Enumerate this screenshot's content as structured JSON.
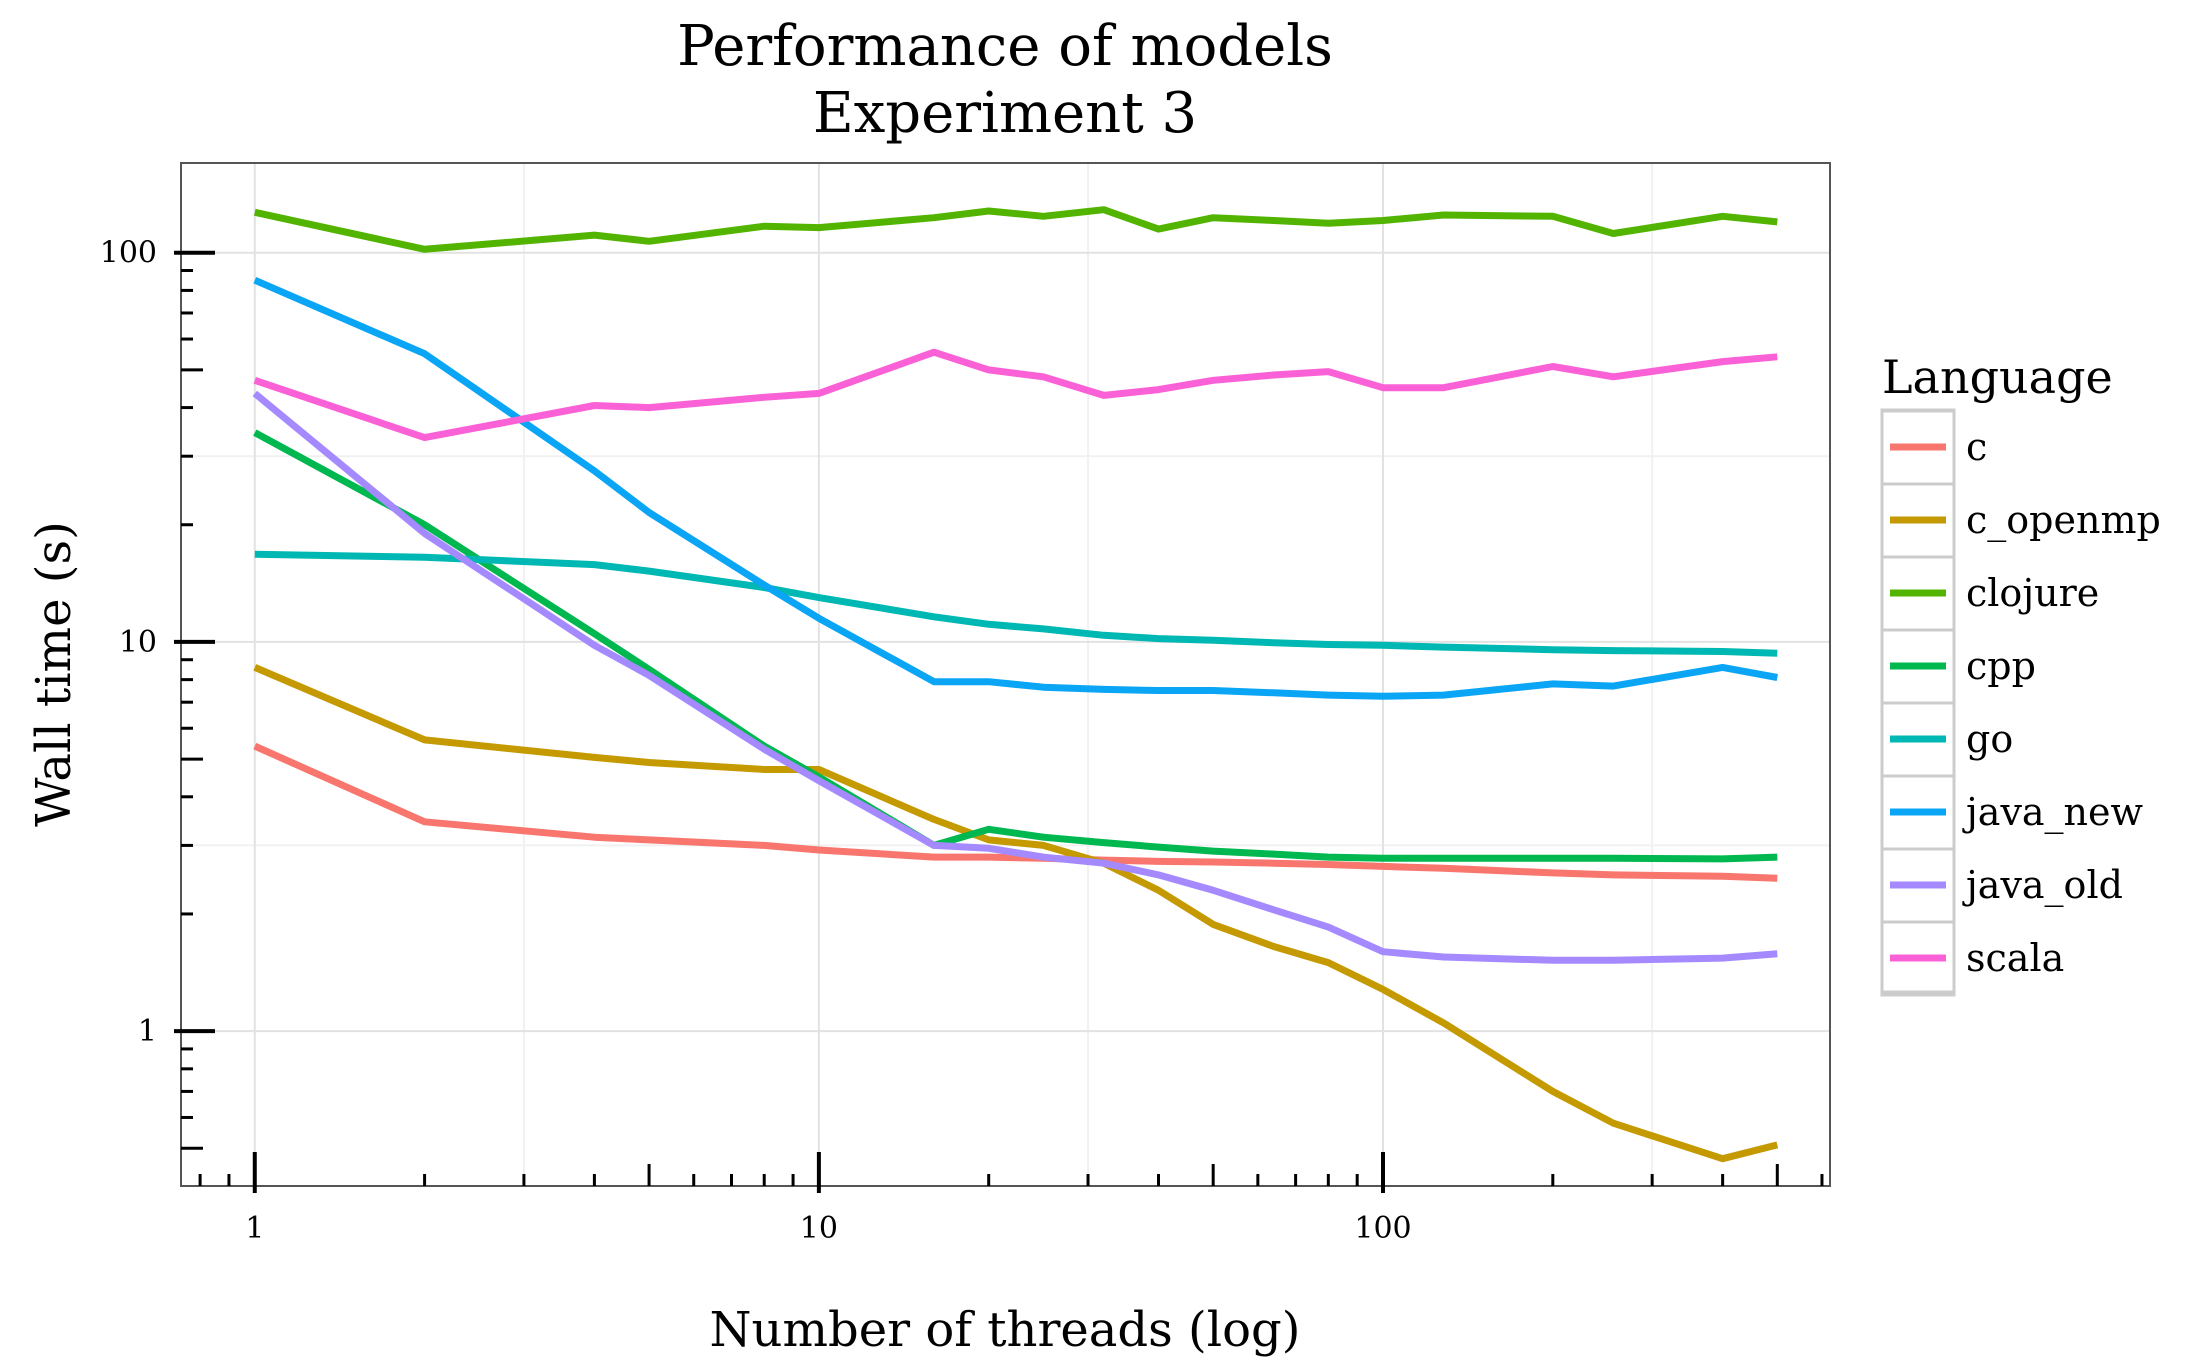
{
  "chart_data": {
    "type": "line",
    "title": "Performance of models",
    "subtitle": "Experiment 3",
    "xlabel": "Number of threads (log)",
    "ylabel": "Wall time (s)",
    "x_scale": "log",
    "y_scale": "log",
    "xlim": [
      0.74,
      620
    ],
    "ylim": [
      0.4,
      170
    ],
    "x_ticks": [
      {
        "value": 1,
        "label": "1"
      },
      {
        "value": 10,
        "label": "10"
      },
      {
        "value": 100,
        "label": "100"
      }
    ],
    "y_ticks": [
      {
        "value": 1,
        "label": "1"
      },
      {
        "value": 10,
        "label": "10"
      },
      {
        "value": 100,
        "label": "100"
      }
    ],
    "grid": true,
    "legend": {
      "title": "Language",
      "position": "right"
    },
    "x": [
      1,
      2,
      4,
      5,
      8,
      10,
      16,
      20,
      25,
      32,
      40,
      50,
      64,
      80,
      100,
      128,
      200,
      256,
      400,
      500
    ],
    "series": [
      {
        "name": "c",
        "color": "#F8766D",
        "values": [
          5.4,
          3.45,
          3.15,
          3.1,
          3.0,
          2.92,
          2.8,
          2.8,
          2.78,
          2.75,
          2.73,
          2.72,
          2.7,
          2.68,
          2.65,
          2.62,
          2.55,
          2.52,
          2.5,
          2.47
        ]
      },
      {
        "name": "c_openmp",
        "color": "#C49A00",
        "values": [
          8.6,
          5.6,
          5.05,
          4.9,
          4.7,
          4.7,
          3.5,
          3.1,
          3.0,
          2.7,
          2.3,
          1.88,
          1.65,
          1.5,
          1.28,
          1.05,
          0.7,
          0.58,
          0.47,
          0.51
        ]
      },
      {
        "name": "clojure",
        "color": "#53B400",
        "values": [
          127,
          102,
          111,
          107,
          117,
          116,
          123,
          128,
          124,
          129,
          115,
          123,
          121,
          119,
          121,
          125,
          124,
          112,
          124,
          120
        ]
      },
      {
        "name": "cpp",
        "color": "#00B84F",
        "values": [
          34.5,
          20.0,
          10.5,
          8.5,
          5.4,
          4.5,
          3.0,
          3.3,
          3.15,
          3.05,
          2.97,
          2.9,
          2.85,
          2.8,
          2.78,
          2.78,
          2.78,
          2.78,
          2.77,
          2.8
        ]
      },
      {
        "name": "go",
        "color": "#00B8B3",
        "values": [
          16.8,
          16.5,
          15.8,
          15.2,
          13.8,
          13.0,
          11.6,
          11.1,
          10.8,
          10.4,
          10.2,
          10.1,
          9.95,
          9.85,
          9.8,
          9.7,
          9.55,
          9.5,
          9.45,
          9.35
        ]
      },
      {
        "name": "java_new",
        "color": "#0BA5F5",
        "values": [
          85,
          55,
          27.5,
          21.5,
          14.0,
          11.5,
          7.9,
          7.9,
          7.65,
          7.55,
          7.5,
          7.5,
          7.4,
          7.3,
          7.25,
          7.3,
          7.8,
          7.7,
          8.6,
          8.1
        ]
      },
      {
        "name": "java_old",
        "color": "#A58AFF",
        "values": [
          43.5,
          19.0,
          9.8,
          8.2,
          5.3,
          4.4,
          3.0,
          2.95,
          2.8,
          2.7,
          2.52,
          2.3,
          2.05,
          1.85,
          1.6,
          1.55,
          1.52,
          1.52,
          1.54,
          1.58
        ]
      },
      {
        "name": "scala",
        "color": "#FB61D7",
        "values": [
          47,
          33.5,
          40.5,
          40,
          42.5,
          43.5,
          55.5,
          50,
          48,
          43,
          44.5,
          47,
          48.5,
          49.5,
          45,
          45,
          51,
          48,
          52.5,
          54
        ]
      }
    ]
  }
}
